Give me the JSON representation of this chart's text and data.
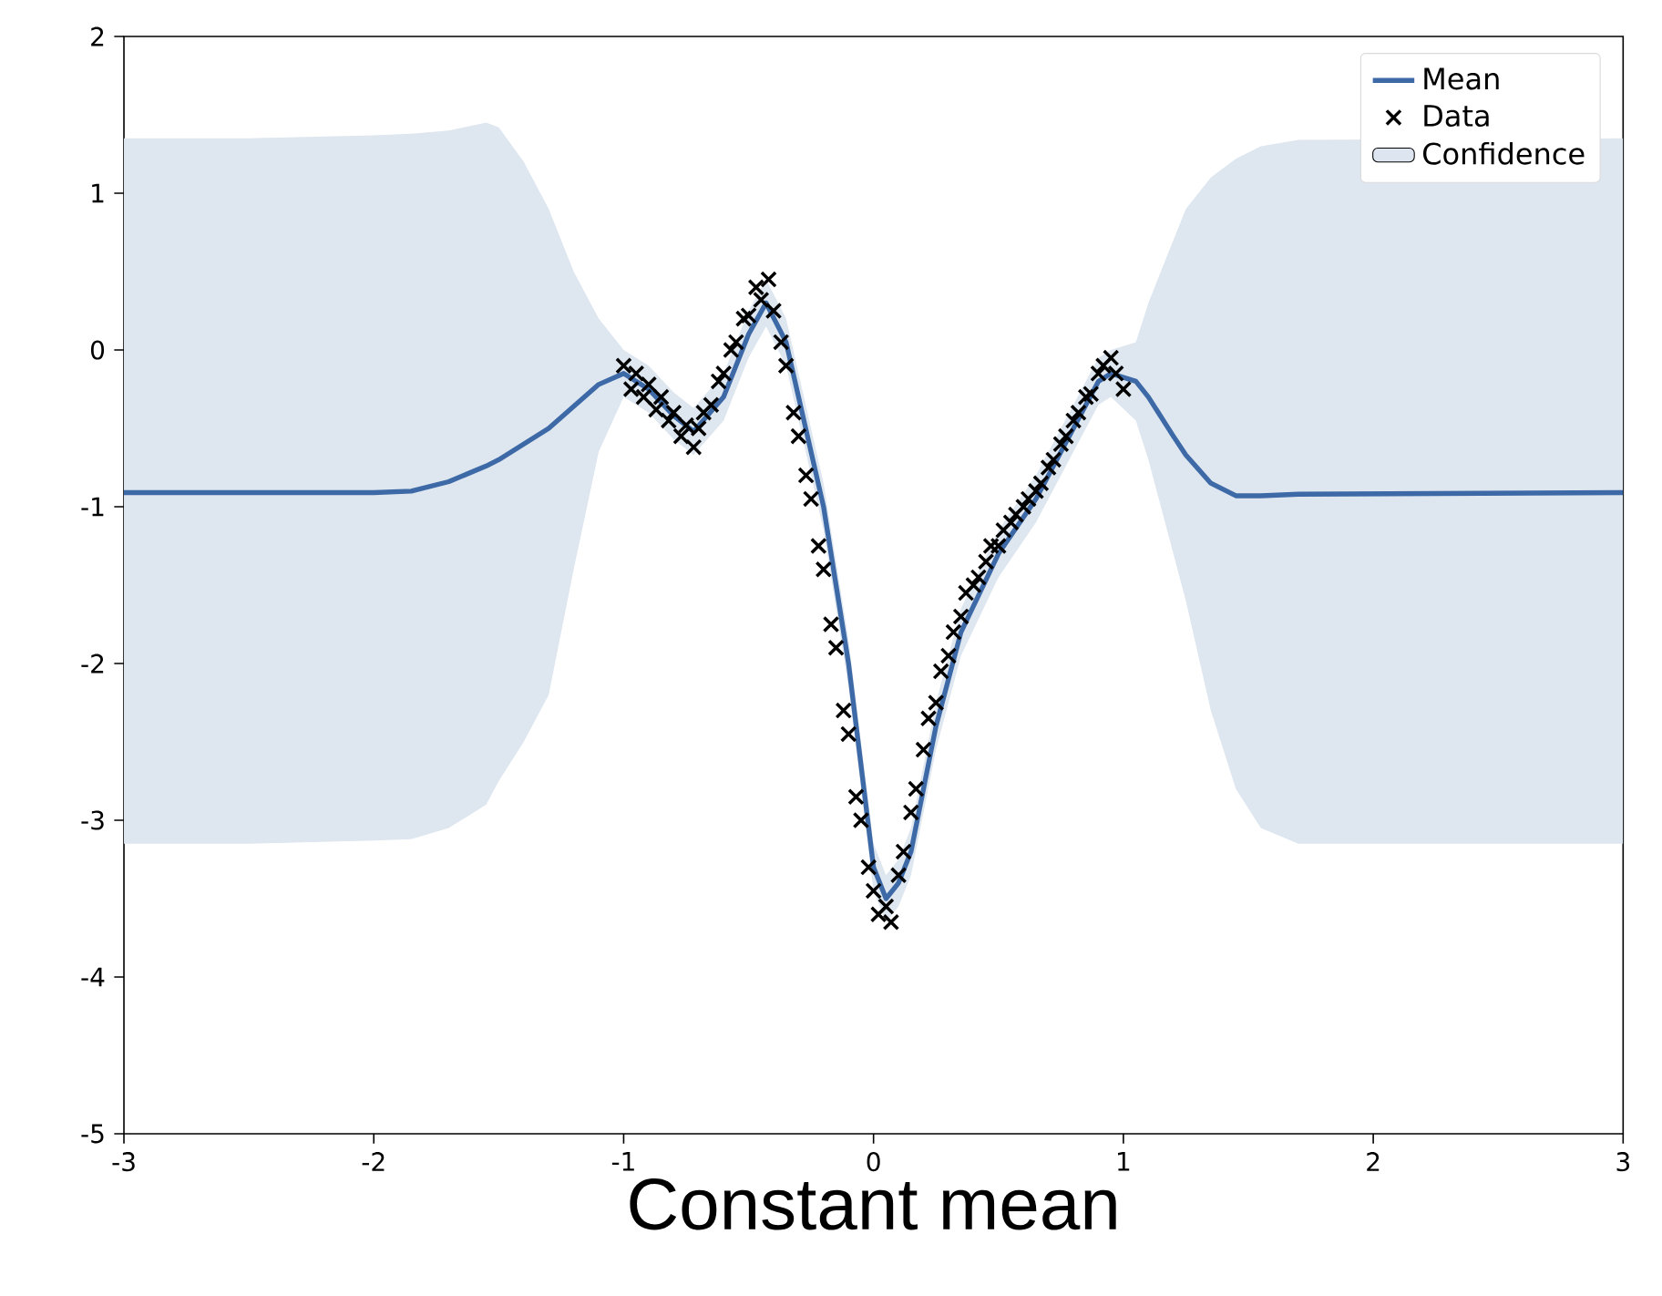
{
  "chart_data": {
    "type": "line",
    "xlabel": "Constant mean",
    "xlim": [
      -3,
      3
    ],
    "ylim": [
      -5,
      2
    ],
    "xticks": [
      -3,
      -2,
      -1,
      0,
      1,
      2,
      3
    ],
    "yticks": [
      -5,
      -4,
      -3,
      -2,
      -1,
      0,
      1,
      2
    ],
    "legend": "top right",
    "series": [
      {
        "name": "Mean",
        "color": "#3d6aa6",
        "x": [
          -3,
          -2.5,
          -2,
          -1.85,
          -1.7,
          -1.55,
          -1.5,
          -1.4,
          -1.3,
          -1.2,
          -1.1,
          -1.0,
          -0.9,
          -0.8,
          -0.72,
          -0.6,
          -0.5,
          -0.43,
          -0.35,
          -0.3,
          -0.2,
          -0.1,
          0,
          0.05,
          0.1,
          0.15,
          0.25,
          0.35,
          0.5,
          0.65,
          0.8,
          0.9,
          0.95,
          1.05,
          1.1,
          1.2,
          1.25,
          1.35,
          1.45,
          1.55,
          1.7,
          3
        ],
        "values": [
          -0.91,
          -0.91,
          -0.91,
          -0.9,
          -0.84,
          -0.74,
          -0.7,
          -0.6,
          -0.5,
          -0.36,
          -0.22,
          -0.15,
          -0.25,
          -0.42,
          -0.52,
          -0.3,
          0.1,
          0.3,
          0.05,
          -0.3,
          -1.0,
          -2.0,
          -3.3,
          -3.5,
          -3.4,
          -3.2,
          -2.4,
          -1.8,
          -1.3,
          -0.95,
          -0.5,
          -0.2,
          -0.15,
          -0.2,
          -0.3,
          -0.55,
          -0.67,
          -0.85,
          -0.93,
          -0.93,
          -0.92,
          -0.91
        ],
        "upper": [
          1.35,
          1.35,
          1.37,
          1.38,
          1.4,
          1.45,
          1.42,
          1.2,
          0.9,
          0.5,
          0.2,
          0.0,
          -0.1,
          -0.27,
          -0.37,
          -0.15,
          0.25,
          0.45,
          0.2,
          -0.15,
          -0.85,
          -1.85,
          -3.15,
          -3.35,
          -3.25,
          -3.05,
          -2.25,
          -1.65,
          -1.15,
          -0.8,
          -0.35,
          -0.05,
          0.0,
          0.05,
          0.3,
          0.7,
          0.9,
          1.1,
          1.22,
          1.3,
          1.34,
          1.35
        ],
        "lower": [
          -3.15,
          -3.15,
          -3.13,
          -3.12,
          -3.05,
          -2.9,
          -2.75,
          -2.5,
          -2.2,
          -1.4,
          -0.65,
          -0.3,
          -0.4,
          -0.57,
          -0.67,
          -0.45,
          -0.05,
          0.15,
          -0.1,
          -0.45,
          -1.15,
          -2.15,
          -3.45,
          -3.65,
          -3.55,
          -3.35,
          -2.55,
          -1.95,
          -1.45,
          -1.1,
          -0.65,
          -0.35,
          -0.3,
          -0.45,
          -0.7,
          -1.3,
          -1.6,
          -2.3,
          -2.8,
          -3.05,
          -3.15,
          -3.15
        ]
      },
      {
        "name": "Data",
        "type": "scatter",
        "marker": "cross",
        "color": "#000000",
        "x": [
          -1.0,
          -0.97,
          -0.95,
          -0.92,
          -0.9,
          -0.87,
          -0.85,
          -0.82,
          -0.8,
          -0.77,
          -0.75,
          -0.72,
          -0.7,
          -0.68,
          -0.65,
          -0.62,
          -0.6,
          -0.57,
          -0.55,
          -0.52,
          -0.5,
          -0.47,
          -0.45,
          -0.42,
          -0.4,
          -0.37,
          -0.35,
          -0.32,
          -0.3,
          -0.27,
          -0.25,
          -0.22,
          -0.2,
          -0.17,
          -0.15,
          -0.12,
          -0.1,
          -0.07,
          -0.05,
          -0.02,
          0.0,
          0.02,
          0.05,
          0.07,
          0.1,
          0.12,
          0.15,
          0.17,
          0.2,
          0.22,
          0.25,
          0.27,
          0.3,
          0.32,
          0.35,
          0.37,
          0.4,
          0.42,
          0.45,
          0.47,
          0.5,
          0.52,
          0.55,
          0.57,
          0.6,
          0.62,
          0.65,
          0.67,
          0.7,
          0.72,
          0.75,
          0.77,
          0.8,
          0.82,
          0.85,
          0.87,
          0.9,
          0.92,
          0.95,
          0.97,
          1.0
        ],
        "values": [
          -0.1,
          -0.25,
          -0.15,
          -0.3,
          -0.22,
          -0.38,
          -0.3,
          -0.45,
          -0.4,
          -0.55,
          -0.48,
          -0.62,
          -0.5,
          -0.4,
          -0.35,
          -0.2,
          -0.15,
          0.0,
          0.05,
          0.2,
          0.22,
          0.4,
          0.32,
          0.45,
          0.25,
          0.05,
          -0.1,
          -0.4,
          -0.55,
          -0.8,
          -0.95,
          -1.25,
          -1.4,
          -1.75,
          -1.9,
          -2.3,
          -2.45,
          -2.85,
          -3.0,
          -3.3,
          -3.45,
          -3.6,
          -3.55,
          -3.65,
          -3.35,
          -3.2,
          -2.95,
          -2.8,
          -2.55,
          -2.35,
          -2.25,
          -2.05,
          -1.95,
          -1.8,
          -1.7,
          -1.55,
          -1.5,
          -1.45,
          -1.35,
          -1.25,
          -1.25,
          -1.15,
          -1.1,
          -1.05,
          -1.0,
          -0.95,
          -0.9,
          -0.85,
          -0.75,
          -0.7,
          -0.6,
          -0.55,
          -0.45,
          -0.4,
          -0.3,
          -0.28,
          -0.15,
          -0.1,
          -0.05,
          -0.15,
          -0.25
        ]
      },
      {
        "name": "Confidence",
        "type": "area",
        "color": "#dde5f1"
      }
    ]
  }
}
